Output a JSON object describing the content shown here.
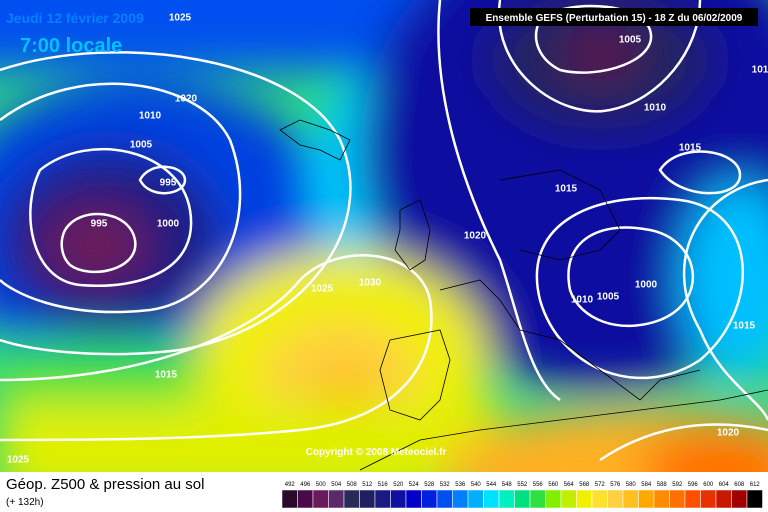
{
  "header": {
    "date": "Jeudi 12 février 2009",
    "time": "7:00 locale",
    "run": "Ensemble GEFS (Perturbation 15)  -  18 Z du 06/02/2009"
  },
  "isobar_labels": [
    "1025",
    "1020",
    "1010",
    "1005",
    "995",
    "995",
    "1000",
    "1025",
    "1030",
    "1020",
    "1015",
    "1025",
    "1005",
    "1010",
    "1015",
    "1015",
    "1010",
    "1005",
    "1000",
    "1015",
    "1020",
    "101"
  ],
  "copyright": "Copyright © 2008 Meteociel.fr",
  "footer": {
    "title": "Géop. Z500 & pression au sol",
    "lead": "(+ 132h)"
  },
  "color_scale": {
    "values": [
      492,
      496,
      500,
      504,
      508,
      512,
      516,
      520,
      524,
      528,
      532,
      536,
      540,
      544,
      548,
      552,
      556,
      560,
      564,
      568,
      572,
      576,
      580,
      584,
      588,
      592,
      596,
      600,
      604,
      608,
      612
    ],
    "colors": [
      "#2a0a2a",
      "#4a0a4a",
      "#6a1a5a",
      "#5a2a6a",
      "#2a2a5a",
      "#202060",
      "#1a1a80",
      "#1010a0",
      "#0000c8",
      "#0020e0",
      "#0050f0",
      "#0080ff",
      "#00b0ff",
      "#00e0ff",
      "#00f0c0",
      "#00e080",
      "#30e040",
      "#80f000",
      "#c0f000",
      "#f0f000",
      "#ffe030",
      "#ffd040",
      "#ffc020",
      "#ffa800",
      "#ff8c00",
      "#ff7000",
      "#ff5000",
      "#e83000",
      "#c81800",
      "#a00000",
      "#000000"
    ]
  }
}
